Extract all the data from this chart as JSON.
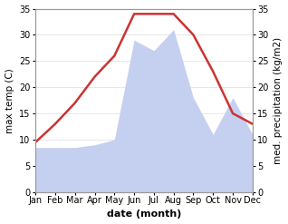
{
  "months": [
    "Jan",
    "Feb",
    "Mar",
    "Apr",
    "May",
    "Jun",
    "Jul",
    "Aug",
    "Sep",
    "Oct",
    "Nov",
    "Dec"
  ],
  "temperature": [
    9.5,
    13.0,
    17.0,
    22.0,
    26.0,
    34.0,
    34.0,
    34.0,
    30.0,
    23.0,
    15.0,
    13.0
  ],
  "precipitation": [
    8.5,
    8.5,
    8.5,
    9.0,
    10.0,
    29.0,
    27.0,
    31.0,
    18.0,
    11.0,
    18.0,
    11.0
  ],
  "temp_color": "#cc3333",
  "precip_color": "#c5d0f0",
  "ylim": [
    0,
    35
  ],
  "yticks": [
    0,
    5,
    10,
    15,
    20,
    25,
    30,
    35
  ],
  "ylabel_left": "max temp (C)",
  "ylabel_right": "med. precipitation (kg/m2)",
  "xlabel": "date (month)",
  "background_color": "#ffffff",
  "label_fontsize": 7.5,
  "tick_fontsize": 7,
  "xlabel_fontsize": 8,
  "linewidth": 1.8
}
